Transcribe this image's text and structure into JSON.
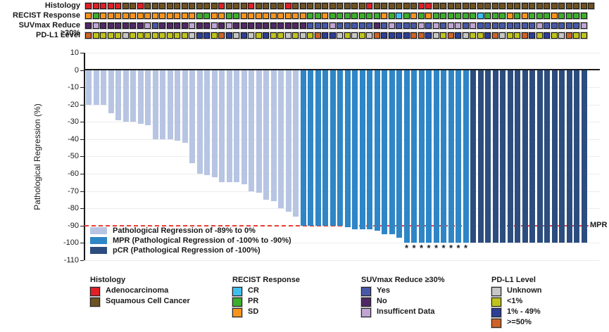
{
  "tracks": {
    "rows": [
      {
        "id": "histology",
        "label": "Histology",
        "cells": "AAAAASSASSSSSSSSSSASSSASSSSASSSSSSSSSSASSSSSSAASSSSSSSSSSSSSSSSSSSSSS",
        "palette": {
          "A": "#E01F26",
          "S": "#6E5222"
        }
      },
      {
        "id": "recist-response",
        "label": "RECIST Response",
        "cells": "OPOOOOOOOOOOOOOPPOOPPOOOOOOOOOPPOPPPPPPPOPCPOPOPPPPPPCPPPOPOPPPOPPPP",
        "palette": {
          "O": "#F7941E",
          "P": "#3DAE2C",
          "C": "#3FBFEF"
        }
      },
      {
        "id": "suvmax-reduce",
        "label": "SUVmax Reduce ≥30%",
        "cells": "NINNNNNNIYNNNNINNININNNNNNNNNNYYYIYYYYYNYIYYYIYIYIIYIYYYYYYYYIYYYYYI",
        "palette": {
          "Y": "#4758A7",
          "N": "#4F2865",
          "I": "#C0A5D3"
        }
      },
      {
        "id": "pdl1-level",
        "label": "PD-L1 Level",
        "cells": "HLLLLULLLLLLLLUMMLHMUMULMLLULULHMMULULUHMMMMHHMULHMULLMHULLHMLMLUHLL",
        "palette": {
          "U": "#C6C6C6",
          "L": "#BFC31C",
          "M": "#2E3E96",
          "H": "#CE6327"
        }
      }
    ]
  },
  "chart_data": {
    "type": "bar",
    "title": "",
    "xlabel": "",
    "ylabel": "Pathological Regression (%)",
    "ylim": [
      -110,
      10
    ],
    "y_ticks": [
      10,
      0,
      -10,
      -20,
      -30,
      -40,
      -50,
      -60,
      -70,
      -80,
      -90,
      -100,
      -110
    ],
    "grid": true,
    "values": [
      -20,
      -20,
      -20,
      -25,
      -29,
      -30,
      -30,
      -31,
      -32,
      -40,
      -40,
      -40,
      -41,
      -42,
      -54,
      -60,
      -61,
      -62,
      -65,
      -65,
      -65,
      -66,
      -70,
      -71,
      -75,
      -76,
      -80,
      -82,
      -85,
      -90,
      -90,
      -90,
      -90,
      -90,
      -90,
      -91,
      -92,
      -92,
      -92,
      -93,
      -95,
      -95,
      -97,
      -100,
      -100,
      -100,
      -100,
      -100,
      -100,
      -100,
      -100,
      -100,
      -100,
      -100,
      -100,
      -100,
      -100,
      -100,
      -100,
      -100,
      -100,
      -100,
      -100,
      -100,
      -100,
      -100,
      -100,
      -100
    ],
    "groups": "11111111111111111111111111111222222222222222222222223333333333333333",
    "group_colors": {
      "1": "#B7C5E3",
      "2": "#2E86C6",
      "3": "#2C4D7E"
    },
    "asterisk_indices": [
      44,
      45,
      46,
      47,
      48,
      49,
      50,
      51,
      52
    ],
    "reference_line": {
      "y": -90,
      "label": "MPR",
      "color": "#EE3B33"
    },
    "legend_position": "lower-left",
    "inplot_legend": [
      {
        "color": "#B7C5E3",
        "label": "Pathological Regression of -89% to 0%"
      },
      {
        "color": "#2E86C6",
        "label": "MPR (Pathological Regression of -100% to -90%)"
      },
      {
        "color": "#2C4D7E",
        "label": "pCR (Pathological Regression of -100%)"
      }
    ]
  },
  "bottom_legend": [
    {
      "title": "Histology",
      "items": [
        {
          "label": "Adenocarcinoma",
          "color": "#E01F26"
        },
        {
          "label": "Squamous Cell Cancer",
          "color": "#6E5222"
        }
      ]
    },
    {
      "title": "RECIST Response",
      "items": [
        {
          "label": "CR",
          "color": "#3FBFEF"
        },
        {
          "label": "PR",
          "color": "#3DAE2C"
        },
        {
          "label": "SD",
          "color": "#F7941E"
        }
      ]
    },
    {
      "title": "SUVmax Reduce ≥30%",
      "items": [
        {
          "label": "Yes",
          "color": "#4758A7"
        },
        {
          "label": "No",
          "color": "#4F2865"
        },
        {
          "label": "Insufficent Data",
          "color": "#C0A5D3"
        }
      ]
    },
    {
      "title": "PD-L1 Level",
      "items": [
        {
          "label": "Unknown",
          "color": "#C6C6C6"
        },
        {
          "label": "<1%",
          "color": "#BFC31C"
        },
        {
          "label": "1% - 49%",
          "color": "#2E3E96"
        },
        {
          "label": ">=50%",
          "color": "#CE6327"
        }
      ]
    }
  ]
}
